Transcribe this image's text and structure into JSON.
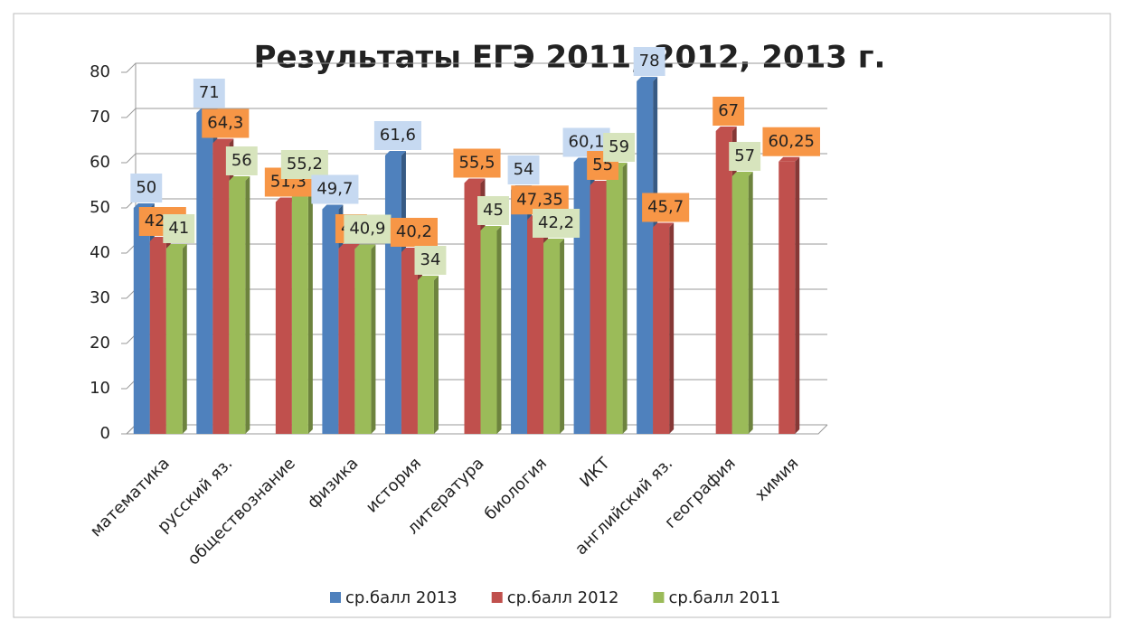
{
  "chart_data": {
    "type": "bar3d",
    "title": "Результаты ЕГЭ 2011, 2012, 2013 г.",
    "categories": [
      "математика",
      "русский яз.",
      "обществознание",
      "физика",
      "история",
      "литература",
      "биология",
      "ИКТ",
      "английский яз.",
      "география",
      "химия"
    ],
    "series": [
      {
        "name": "ср.балл 2013",
        "color": "#4f81bd",
        "label_bg": "#c6d9f1",
        "values": [
          50,
          71,
          null,
          49.7,
          61.6,
          null,
          54,
          60.1,
          78,
          null,
          null
        ],
        "value_labels": [
          "50",
          "71",
          null,
          "49,7",
          "61,6",
          null,
          "54",
          "60,1",
          "78",
          null,
          null
        ]
      },
      {
        "name": "ср.балл 2012",
        "color": "#c0504d",
        "label_bg": "#f79646",
        "values": [
          42.6,
          64.3,
          51.3,
          41,
          40.2,
          55.5,
          47.35,
          55,
          45.7,
          67,
          60.25
        ],
        "value_labels": [
          "42,6",
          "64,3",
          "51,3",
          "41",
          "40,2",
          "55,5",
          "47,35",
          "55",
          "45,7",
          "67",
          "60,25"
        ]
      },
      {
        "name": "ср.балл 2011",
        "color": "#9bbb59",
        "label_bg": "#d7e4bd",
        "values": [
          41,
          56,
          55.2,
          40.9,
          34,
          45,
          42.2,
          59,
          null,
          57,
          null
        ],
        "value_labels": [
          "41",
          "56",
          "55,2",
          "40,9",
          "34",
          "45",
          "42,2",
          "59",
          null,
          "57",
          null
        ]
      }
    ],
    "ylim": [
      0,
      80
    ],
    "yticks": [
      0,
      10,
      20,
      30,
      40,
      50,
      60,
      70,
      80
    ],
    "grid": true,
    "legend": "bottom"
  }
}
